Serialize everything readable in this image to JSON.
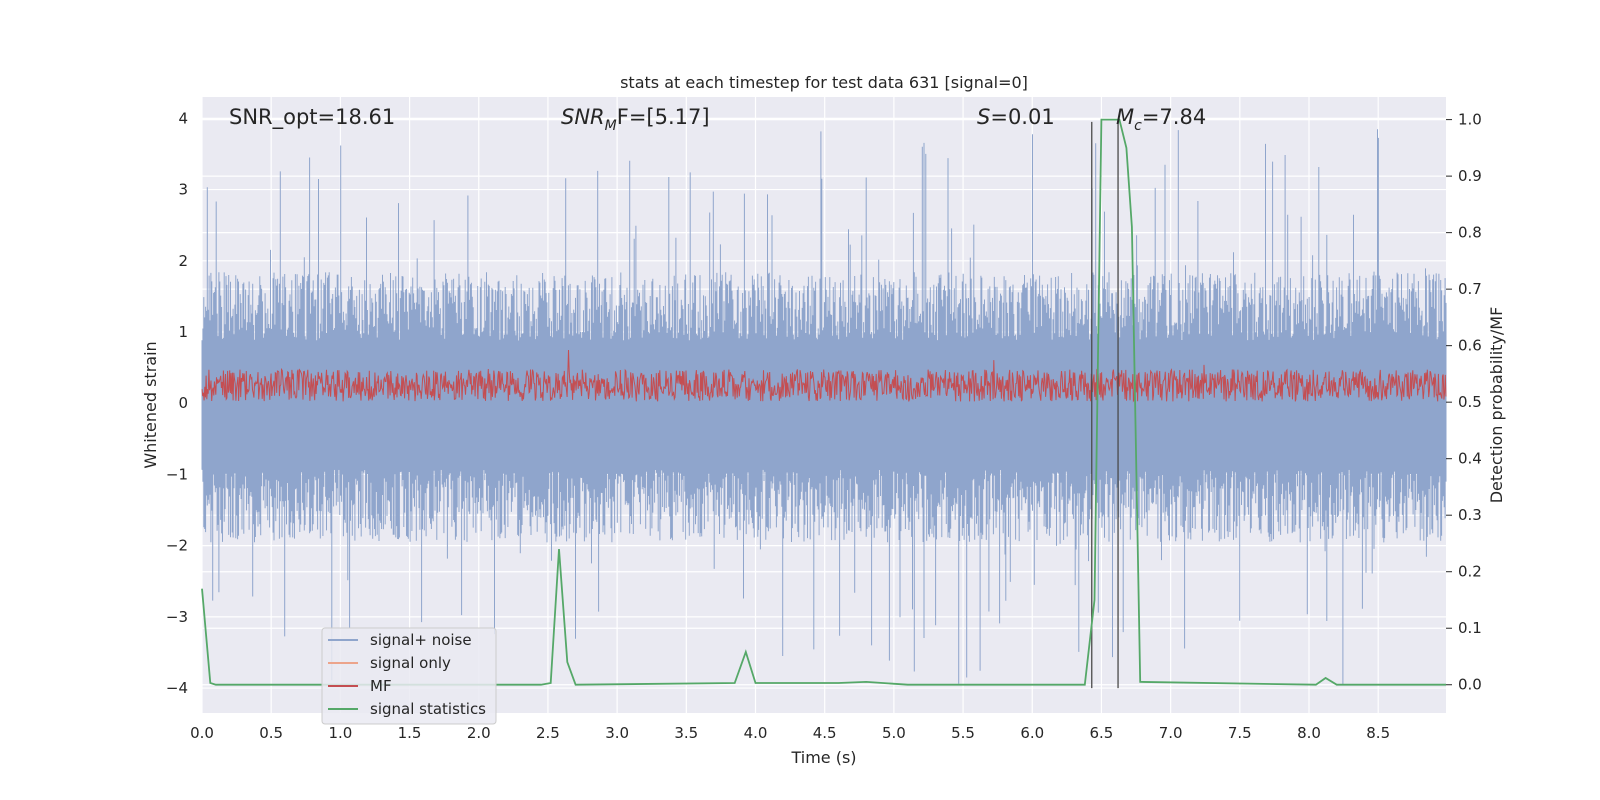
{
  "chart_data": {
    "type": "line",
    "title": "stats at each timestep for test data 631 [signal=0]",
    "xlabel": "Time (s)",
    "ylabel": "Whitened strain",
    "y2label": "Detection probability/MF",
    "xlim": [
      0,
      8.99
    ],
    "ylim": [
      -4.35,
      4.3
    ],
    "y2lim": [
      -0.05,
      1.04
    ],
    "x_ticks": [
      "0.0",
      "0.5",
      "1.0",
      "1.5",
      "2.0",
      "2.5",
      "3.0",
      "3.5",
      "4.0",
      "4.5",
      "5.0",
      "5.5",
      "6.0",
      "6.5",
      "7.0",
      "7.5",
      "8.0",
      "8.5"
    ],
    "y_ticks": [
      "4",
      "3",
      "2",
      "1",
      "0",
      "−1",
      "−2",
      "−3",
      "−4"
    ],
    "y2_ticks": [
      "1.0",
      "0.9",
      "0.8",
      "0.7",
      "0.6",
      "0.5",
      "0.4",
      "0.3",
      "0.2",
      "0.1",
      "0.0"
    ],
    "grid": true,
    "legend_position": "lower-left",
    "annotations": {
      "snr_opt": "SNR_opt=18.61",
      "snr_mf_main": "SNR",
      "snr_mf_sub": "M",
      "snr_mf_rest": "F=[5.17]",
      "s_main": "S",
      "s_rest": "=0.01",
      "mc_main": "M",
      "mc_sub": "c",
      "mc_rest": "=7.84"
    },
    "markers": [
      6.43,
      6.62
    ],
    "series": [
      {
        "name": "signal+ noise",
        "color": "#8fa5cc",
        "description_envelope": {
          "typical_upper": 1.6,
          "typical_lower": -1.7,
          "peak_upper": 3.9,
          "peak_lower": -4.0
        }
      },
      {
        "name": "signal only",
        "color": "#eca48b",
        "values": []
      },
      {
        "name": "MF",
        "color": "#c44e52",
        "baseline": 0.25,
        "amplitude": 0.45
      },
      {
        "name": "signal statistics",
        "color": "#55a868",
        "axis": "right",
        "x": [
          0.0,
          0.06,
          0.1,
          2.45,
          2.52,
          2.58,
          2.64,
          2.7,
          3.85,
          3.93,
          4.0,
          4.6,
          4.8,
          5.1,
          6.38,
          6.45,
          6.5,
          6.63,
          6.68,
          6.72,
          6.78,
          8.05,
          8.12,
          8.2,
          8.99
        ],
        "values": [
          0.17,
          0.003,
          0.0,
          0.0,
          0.003,
          0.24,
          0.04,
          0.0,
          0.003,
          0.058,
          0.003,
          0.003,
          0.005,
          0.0,
          0.0,
          0.15,
          1.0,
          1.0,
          0.95,
          0.81,
          0.005,
          0.0,
          0.012,
          0.0,
          0.0
        ]
      }
    ]
  }
}
